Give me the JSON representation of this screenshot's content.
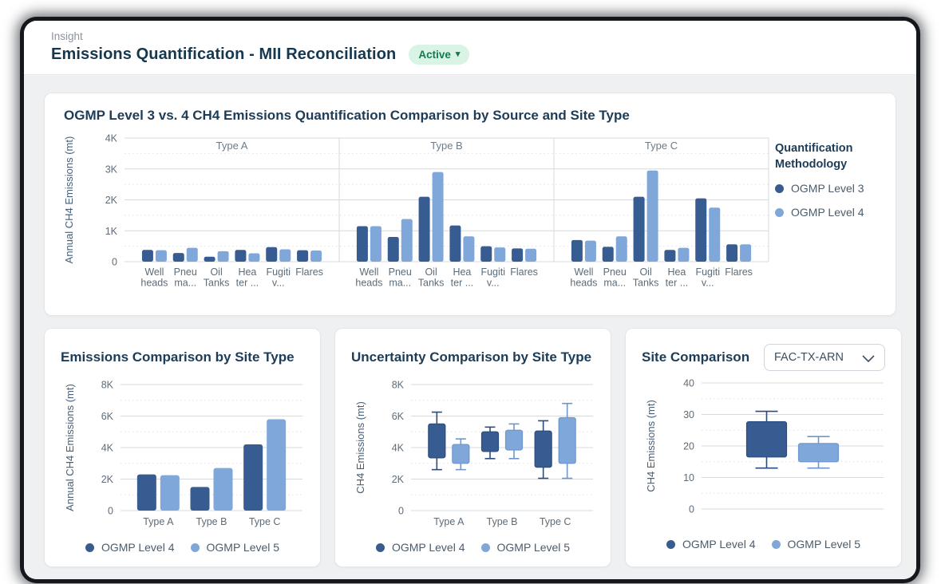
{
  "page": {
    "eyebrow": "Insight",
    "title": "Emissions Quantification - MII Reconciliation",
    "status_label": "Active",
    "status_caret": "▾"
  },
  "colors": {
    "series_dark": "#375c92",
    "series_dark_stroke": "#2c4c7e",
    "series_light": "#7fa7da",
    "series_light_stroke": "#6d97cd",
    "accent_badge_bg": "#d9f4e5",
    "accent_badge_text": "#147a4d",
    "title_navy": "#1d3c58"
  },
  "chart_data": [
    {
      "type": "bar",
      "title": "OGMP Level 3 vs. 4 CH4 Emissions Quantification Comparison by Source and Site Type",
      "legend_title": "Quantification Methodology",
      "legend_position": "right",
      "facets": [
        "Type A",
        "Type B",
        "Type C"
      ],
      "categories": [
        "Wellheads",
        "Pneuma...",
        "Oil Tanks",
        "Heater ...",
        "Fugitiv...",
        "Flares"
      ],
      "category_labels": [
        [
          "Well",
          "heads"
        ],
        [
          "Pneu",
          "ma..."
        ],
        [
          "Oil",
          "Tanks"
        ],
        [
          "Hea",
          "ter ..."
        ],
        [
          "Fugiti",
          "v..."
        ],
        [
          "Flares"
        ]
      ],
      "series": [
        {
          "name": "OGMP Level 3",
          "color": "#375c92",
          "values": [
            [
              380,
              280,
              160,
              380,
              470,
              370
            ],
            [
              1150,
              800,
              2100,
              1170,
              500,
              430
            ],
            [
              700,
              480,
              2100,
              380,
              2050,
              560
            ]
          ]
        },
        {
          "name": "OGMP Level 4",
          "color": "#7fa7da",
          "values": [
            [
              370,
              450,
              340,
              270,
              400,
              360
            ],
            [
              1150,
              1380,
              2900,
              820,
              460,
              420
            ],
            [
              680,
              820,
              2950,
              450,
              1750,
              560
            ]
          ]
        }
      ],
      "xlabel": "",
      "ylabel": "Annual CH4 Emissions (mt)",
      "ylim": [
        0,
        4000
      ],
      "yticks": [
        0,
        1000,
        2000,
        3000,
        4000
      ],
      "ytick_labels": [
        "0",
        "1K",
        "2K",
        "3K",
        "4K"
      ],
      "grid": true
    },
    {
      "type": "bar",
      "title": "Emissions Comparison by Site Type",
      "legend_position": "bottom",
      "categories": [
        "Type A",
        "Type B",
        "Type C"
      ],
      "series": [
        {
          "name": "OGMP Level 4",
          "color": "#375c92",
          "values": [
            2300,
            1500,
            4200
          ]
        },
        {
          "name": "OGMP Level 5",
          "color": "#7fa7da",
          "values": [
            2250,
            2700,
            5800
          ]
        }
      ],
      "xlabel": "",
      "ylabel": "Annual CH4 Emissions (mt)",
      "ylim": [
        0,
        8000
      ],
      "yticks": [
        0,
        2000,
        4000,
        6000,
        8000
      ],
      "ytick_labels": [
        "0",
        "2K",
        "4K",
        "6K",
        "8K"
      ],
      "grid": true
    },
    {
      "type": "box",
      "title": "Uncertainty Comparison by Site Type",
      "legend_position": "bottom",
      "categories": [
        "Type A",
        "Type B",
        "Type C"
      ],
      "series": [
        {
          "name": "OGMP Level 4",
          "color": "#375c92",
          "stroke": "#2c4c7e",
          "boxes": [
            {
              "low": 2600,
              "q1": 3350,
              "q3": 5500,
              "high": 6250
            },
            {
              "low": 3300,
              "q1": 3750,
              "q3": 5000,
              "high": 5300
            },
            {
              "low": 2050,
              "q1": 2750,
              "q3": 5050,
              "high": 5700
            }
          ]
        },
        {
          "name": "OGMP Level 5",
          "color": "#7fa7da",
          "stroke": "#6d97cd",
          "boxes": [
            {
              "low": 2600,
              "q1": 3000,
              "q3": 4200,
              "high": 4550
            },
            {
              "low": 3300,
              "q1": 3850,
              "q3": 5100,
              "high": 5500
            },
            {
              "low": 2050,
              "q1": 3000,
              "q3": 5900,
              "high": 6800
            }
          ]
        }
      ],
      "xlabel": "",
      "ylabel": "CH4 Emissions (mt)",
      "ylim": [
        0,
        8000
      ],
      "yticks": [
        0,
        2000,
        4000,
        6000,
        8000
      ],
      "ytick_labels": [
        "0",
        "2K",
        "4K",
        "6K",
        "8K"
      ],
      "grid": true
    },
    {
      "type": "box",
      "title": "Site Comparison",
      "legend_position": "bottom",
      "site_selector": {
        "value": "FAC-TX-ARN"
      },
      "categories": [
        ""
      ],
      "category_labels": [
        []
      ],
      "series": [
        {
          "name": "OGMP Level 4",
          "color": "#375c92",
          "stroke": "#2c4c7e",
          "boxes": [
            {
              "low": 13,
              "q1": 16.5,
              "q3": 27.7,
              "high": 31
            }
          ]
        },
        {
          "name": "OGMP Level 5",
          "color": "#7fa7da",
          "stroke": "#6d97cd",
          "boxes": [
            {
              "low": 13,
              "q1": 15,
              "q3": 20.8,
              "high": 23
            }
          ]
        }
      ],
      "xlabel": "",
      "ylabel": "CH4 Emissions (mt)",
      "ylim": [
        0,
        40
      ],
      "yticks": [
        0,
        10,
        20,
        30,
        40
      ],
      "ytick_labels": [
        "0",
        "10",
        "20",
        "30",
        "40"
      ],
      "grid": true
    }
  ]
}
